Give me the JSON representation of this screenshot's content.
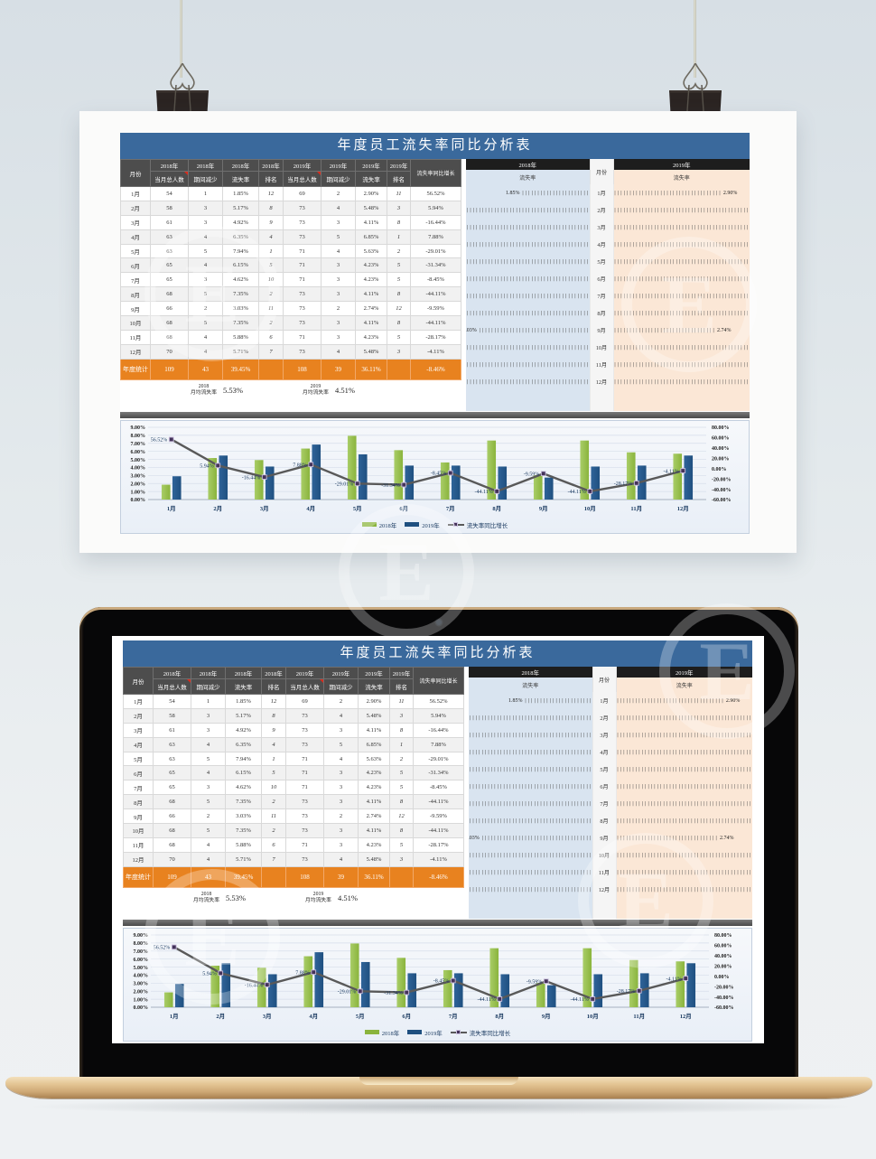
{
  "watermark": {
    "letter": "E"
  },
  "sheet": {
    "title": "年度员工流失率同比分析表",
    "table": {
      "month_label": "月份",
      "yoy_label": "流失率同比增长",
      "columns": [
        {
          "year": "2018年",
          "label": "当月总人数",
          "note": true
        },
        {
          "year": "2018年",
          "label": "期间减少",
          "note": false
        },
        {
          "year": "2018年",
          "label": "流失率",
          "note": false
        },
        {
          "year": "2018年",
          "label": "排名",
          "note": false
        },
        {
          "year": "2019年",
          "label": "当月总人数",
          "note": true
        },
        {
          "year": "2019年",
          "label": "期间减少",
          "note": false
        },
        {
          "year": "2019年",
          "label": "流失率",
          "note": false
        },
        {
          "year": "2019年",
          "label": "排名",
          "note": false
        }
      ],
      "rows": [
        {
          "month": "1月",
          "t18": "54",
          "d18": "1",
          "r18": "1.85%",
          "rank18": "12",
          "t19": "69",
          "d19": "2",
          "r19": "2.90%",
          "rank19": "11",
          "yoy": "56.52%"
        },
        {
          "month": "2月",
          "t18": "58",
          "d18": "3",
          "r18": "5.17%",
          "rank18": "8",
          "t19": "73",
          "d19": "4",
          "r19": "5.48%",
          "rank19": "3",
          "yoy": "5.94%"
        },
        {
          "month": "3月",
          "t18": "61",
          "d18": "3",
          "r18": "4.92%",
          "rank18": "9",
          "t19": "73",
          "d19": "3",
          "r19": "4.11%",
          "rank19": "8",
          "yoy": "-16.44%"
        },
        {
          "month": "4月",
          "t18": "63",
          "d18": "4",
          "r18": "6.35%",
          "rank18": "4",
          "t19": "73",
          "d19": "5",
          "r19": "6.85%",
          "rank19": "1",
          "yoy": "7.88%"
        },
        {
          "month": "5月",
          "t18": "63",
          "d18": "5",
          "r18": "7.94%",
          "rank18": "1",
          "t19": "71",
          "d19": "4",
          "r19": "5.63%",
          "rank19": "2",
          "yoy": "-29.01%"
        },
        {
          "month": "6月",
          "t18": "65",
          "d18": "4",
          "r18": "6.15%",
          "rank18": "5",
          "t19": "71",
          "d19": "3",
          "r19": "4.23%",
          "rank19": "5",
          "yoy": "-31.34%"
        },
        {
          "month": "7月",
          "t18": "65",
          "d18": "3",
          "r18": "4.62%",
          "rank18": "10",
          "t19": "71",
          "d19": "3",
          "r19": "4.23%",
          "rank19": "5",
          "yoy": "-8.45%"
        },
        {
          "month": "8月",
          "t18": "68",
          "d18": "5",
          "r18": "7.35%",
          "rank18": "2",
          "t19": "73",
          "d19": "3",
          "r19": "4.11%",
          "rank19": "8",
          "yoy": "-44.11%"
        },
        {
          "month": "9月",
          "t18": "66",
          "d18": "2",
          "r18": "3.03%",
          "rank18": "11",
          "t19": "73",
          "d19": "2",
          "r19": "2.74%",
          "rank19": "12",
          "yoy": "-9.59%"
        },
        {
          "month": "10月",
          "t18": "68",
          "d18": "5",
          "r18": "7.35%",
          "rank18": "2",
          "t19": "73",
          "d19": "3",
          "r19": "4.11%",
          "rank19": "8",
          "yoy": "-44.11%"
        },
        {
          "month": "11月",
          "t18": "68",
          "d18": "4",
          "r18": "5.88%",
          "rank18": "6",
          "t19": "71",
          "d19": "3",
          "r19": "4.23%",
          "rank19": "5",
          "yoy": "-28.17%"
        },
        {
          "month": "12月",
          "t18": "70",
          "d18": "4",
          "r18": "5.71%",
          "rank18": "7",
          "t19": "73",
          "d19": "4",
          "r19": "5.48%",
          "rank19": "3",
          "yoy": "-4.11%"
        }
      ],
      "summary": {
        "label": "年度统计",
        "t18": "109",
        "d18": "43",
        "r18": "39.45%",
        "t19": "108",
        "d19": "39",
        "r19": "36.11%",
        "yoy": "-8.46%"
      },
      "stats": [
        {
          "year": "2018",
          "label": "月均流失率",
          "value": "5.53%"
        },
        {
          "year": "2019",
          "label": "月均流失率",
          "value": "4.51%"
        }
      ]
    },
    "panels": {
      "month_header": "月份",
      "left": {
        "year": "2018年",
        "metric": "流失率"
      },
      "right": {
        "year": "2019年",
        "metric": "流失率"
      },
      "rows": [
        {
          "month": "1月",
          "v18": 1.85,
          "l18": "1.85%",
          "v19": 2.9,
          "l19": "2.90%"
        },
        {
          "month": "2月",
          "v18": 5.17,
          "l18": "",
          "v19": 5.48,
          "l19": ""
        },
        {
          "month": "3月",
          "v18": 4.92,
          "l18": "",
          "v19": 4.11,
          "l19": ""
        },
        {
          "month": "4月",
          "v18": 6.35,
          "l18": "",
          "v19": 6.85,
          "l19": ""
        },
        {
          "month": "5月",
          "v18": 7.94,
          "l18": "",
          "v19": 5.63,
          "l19": ""
        },
        {
          "month": "6月",
          "v18": 6.15,
          "l18": "",
          "v19": 4.23,
          "l19": ""
        },
        {
          "month": "7月",
          "v18": 4.62,
          "l18": "",
          "v19": 4.23,
          "l19": ""
        },
        {
          "month": "8月",
          "v18": 7.35,
          "l18": "",
          "v19": 4.11,
          "l19": ""
        },
        {
          "month": "9月",
          "v18": 3.03,
          "l18": "3.03%",
          "v19": 2.74,
          "l19": "2.74%"
        },
        {
          "month": "10月",
          "v18": 7.35,
          "l18": "",
          "v19": 4.11,
          "l19": ""
        },
        {
          "month": "11月",
          "v18": 5.88,
          "l18": "",
          "v19": 4.23,
          "l19": ""
        },
        {
          "month": "12月",
          "v18": 5.71,
          "l18": "",
          "v19": 5.48,
          "l19": ""
        }
      ]
    }
  },
  "chart_data": {
    "type": "bar+line",
    "categories": [
      "1月",
      "2月",
      "3月",
      "4月",
      "5月",
      "6月",
      "7月",
      "8月",
      "9月",
      "10月",
      "11月",
      "12月"
    ],
    "series": [
      {
        "name": "2018年",
        "type": "bar",
        "color": "#8ab43c",
        "color2": "#a9cd68",
        "values": [
          1.85,
          5.17,
          4.92,
          6.35,
          7.94,
          6.15,
          4.62,
          7.35,
          3.03,
          7.35,
          5.88,
          5.71
        ]
      },
      {
        "name": "2019年",
        "type": "bar",
        "color": "#1f5080",
        "color2": "#2f6399",
        "values": [
          2.9,
          5.48,
          4.11,
          6.85,
          5.63,
          4.23,
          4.23,
          4.11,
          2.74,
          4.11,
          4.23,
          5.48
        ]
      },
      {
        "name": "流失率同比增长",
        "type": "line",
        "axis": "secondary",
        "color": "#595959",
        "marker_color": "#44335a",
        "values": [
          56.52,
          5.94,
          -16.44,
          7.88,
          -29.01,
          -31.34,
          -8.45,
          -44.11,
          -9.59,
          -44.11,
          -28.17,
          -4.11
        ],
        "labels": [
          "56.52%",
          "5.94%",
          "-16.44%",
          "7.88%",
          "-29.01%",
          "-31.34%",
          "-8.45%",
          "-44.11%",
          "-9.59%",
          "-44.11%",
          "-28.17%",
          "-4.11%"
        ]
      }
    ],
    "y_left": {
      "min": 0,
      "max": 9,
      "step": 1,
      "tick_format": "0.00%"
    },
    "y_right": {
      "min": -60,
      "max": 80,
      "step": 20,
      "tick_format": "0.00%"
    },
    "grid": true,
    "legend_position": "bottom"
  }
}
